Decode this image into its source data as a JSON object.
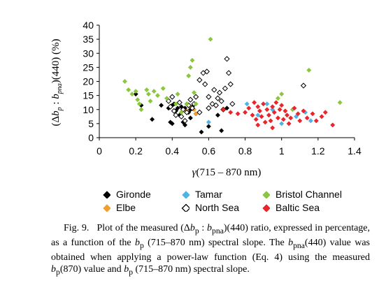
{
  "chart_data": {
    "type": "scatter",
    "xlabel": "γ(715 – 870 nm)",
    "ylabel": "(Δbp : bpna)(440) (%)",
    "xlim": [
      0,
      1.4
    ],
    "ylim": [
      0,
      40
    ],
    "xticks": [
      "0",
      "0.2",
      "0.4",
      "0.6",
      "0.8",
      "1",
      "1.2",
      "1.4"
    ],
    "yticks": [
      "0",
      "5",
      "10",
      "15",
      "20",
      "25",
      "30",
      "35",
      "40"
    ],
    "grid": false,
    "legend_placement": "bottom",
    "series": [
      {
        "name": "Gironde",
        "color": "#000000",
        "marker": "diamond-filled",
        "points": [
          [
            0.2,
            15.5
          ],
          [
            0.23,
            11.5
          ],
          [
            0.29,
            6.5
          ],
          [
            0.34,
            11.5
          ],
          [
            0.38,
            10.5
          ],
          [
            0.39,
            5.5
          ],
          [
            0.4,
            11.5
          ],
          [
            0.4,
            5
          ],
          [
            0.41,
            12
          ],
          [
            0.42,
            9.5
          ],
          [
            0.43,
            10.5
          ],
          [
            0.44,
            8
          ],
          [
            0.45,
            11
          ],
          [
            0.46,
            5.5
          ],
          [
            0.47,
            10.5
          ],
          [
            0.47,
            4.5
          ],
          [
            0.48,
            12
          ],
          [
            0.49,
            9
          ],
          [
            0.5,
            10
          ],
          [
            0.5,
            7
          ],
          [
            0.51,
            11
          ],
          [
            0.53,
            8.5
          ],
          [
            0.56,
            2
          ],
          [
            0.6,
            4
          ],
          [
            0.65,
            8
          ],
          [
            0.67,
            2.5
          ],
          [
            0.7,
            10.5
          ]
        ]
      },
      {
        "name": "Elbe",
        "color": "#f0a030",
        "marker": "diamond-filled",
        "points": [
          [
            0.45,
            9
          ],
          [
            0.48,
            9.5
          ],
          [
            0.5,
            11
          ],
          [
            0.52,
            10
          ],
          [
            0.53,
            8.5
          ],
          [
            0.55,
            9
          ]
        ]
      },
      {
        "name": "Tamar",
        "color": "#4fb3e6",
        "marker": "diamond-filled",
        "points": [
          [
            0.6,
            5.5
          ],
          [
            0.81,
            12
          ],
          [
            0.87,
            8
          ],
          [
            0.92,
            12
          ],
          [
            0.95,
            10
          ],
          [
            1.0,
            5
          ],
          [
            1.08,
            7.5
          ],
          [
            1.13,
            9
          ],
          [
            1.16,
            6
          ]
        ]
      },
      {
        "name": "North Sea",
        "color": "#000000",
        "marker": "diamond-open",
        "points": [
          [
            0.38,
            13
          ],
          [
            0.39,
            11
          ],
          [
            0.4,
            14.5
          ],
          [
            0.41,
            9.5
          ],
          [
            0.42,
            8
          ],
          [
            0.44,
            12.5
          ],
          [
            0.45,
            7.5
          ],
          [
            0.46,
            10
          ],
          [
            0.47,
            6
          ],
          [
            0.48,
            9
          ],
          [
            0.49,
            11.5
          ],
          [
            0.5,
            13.5
          ],
          [
            0.51,
            10.5
          ],
          [
            0.52,
            12
          ],
          [
            0.53,
            14.5
          ],
          [
            0.55,
            9
          ],
          [
            0.55,
            20.5
          ],
          [
            0.57,
            23
          ],
          [
            0.58,
            19
          ],
          [
            0.59,
            23.5
          ],
          [
            0.6,
            14.5
          ],
          [
            0.6,
            10.5
          ],
          [
            0.62,
            12
          ],
          [
            0.63,
            17
          ],
          [
            0.64,
            11.5
          ],
          [
            0.65,
            14
          ],
          [
            0.66,
            16
          ],
          [
            0.67,
            13
          ],
          [
            0.68,
            10
          ],
          [
            0.69,
            17.5
          ],
          [
            0.7,
            28
          ],
          [
            0.71,
            23
          ],
          [
            0.72,
            19
          ],
          [
            0.73,
            12
          ],
          [
            1.12,
            18.5
          ]
        ]
      },
      {
        "name": "Bristol Channel",
        "color": "#8cc63f",
        "marker": "diamond-filled",
        "points": [
          [
            0.14,
            20
          ],
          [
            0.16,
            17
          ],
          [
            0.18,
            15.5
          ],
          [
            0.2,
            16.5
          ],
          [
            0.21,
            13.5
          ],
          [
            0.22,
            12
          ],
          [
            0.23,
            10
          ],
          [
            0.26,
            17
          ],
          [
            0.27,
            15.5
          ],
          [
            0.28,
            13
          ],
          [
            0.3,
            16.5
          ],
          [
            0.32,
            15
          ],
          [
            0.35,
            17.5
          ],
          [
            0.37,
            14
          ],
          [
            0.42,
            12
          ],
          [
            0.43,
            15.5
          ],
          [
            0.45,
            9
          ],
          [
            0.48,
            12
          ],
          [
            0.49,
            22
          ],
          [
            0.5,
            25
          ],
          [
            0.51,
            27.5
          ],
          [
            0.52,
            16
          ],
          [
            0.53,
            12
          ],
          [
            0.61,
            35
          ],
          [
            0.98,
            14
          ],
          [
            1.0,
            15.5
          ],
          [
            1.06,
            10
          ],
          [
            1.15,
            24
          ],
          [
            1.32,
            12.5
          ]
        ]
      },
      {
        "name": "Baltic Sea",
        "color": "#e8262b",
        "marker": "diamond-filled",
        "points": [
          [
            0.68,
            10
          ],
          [
            0.72,
            9
          ],
          [
            0.76,
            8.5
          ],
          [
            0.8,
            9
          ],
          [
            0.82,
            10.5
          ],
          [
            0.84,
            8
          ],
          [
            0.85,
            12.5
          ],
          [
            0.86,
            6.5
          ],
          [
            0.87,
            11
          ],
          [
            0.87,
            4.5
          ],
          [
            0.88,
            9.5
          ],
          [
            0.89,
            7.5
          ],
          [
            0.9,
            12
          ],
          [
            0.91,
            5.5
          ],
          [
            0.92,
            10
          ],
          [
            0.93,
            8
          ],
          [
            0.94,
            6
          ],
          [
            0.95,
            11
          ],
          [
            0.95,
            3.5
          ],
          [
            0.96,
            9
          ],
          [
            0.97,
            12.5
          ],
          [
            0.98,
            7
          ],
          [
            0.99,
            10
          ],
          [
            1.0,
            11.5
          ],
          [
            1.01,
            6.5
          ],
          [
            1.02,
            9.5
          ],
          [
            1.03,
            8
          ],
          [
            1.04,
            5
          ],
          [
            1.05,
            7
          ],
          [
            1.07,
            10.5
          ],
          [
            1.09,
            8.5
          ],
          [
            1.1,
            6
          ],
          [
            1.12,
            9.5
          ],
          [
            1.14,
            7
          ],
          [
            1.17,
            8.5
          ],
          [
            1.19,
            6
          ],
          [
            1.22,
            7.5
          ],
          [
            1.24,
            9
          ],
          [
            1.28,
            4.5
          ]
        ]
      }
    ]
  },
  "axes": {
    "y_title_parts": [
      "(Δ",
      "b",
      "p",
      " : ",
      "b",
      "pna",
      ")(440) (%)"
    ],
    "x_title_parts": [
      "γ",
      "(715 – 870 nm)"
    ]
  },
  "legend": [
    {
      "label": "Gironde",
      "color": "#000000",
      "marker": "diamond-filled"
    },
    {
      "label": "Tamar",
      "color": "#4fb3e6",
      "marker": "diamond-filled"
    },
    {
      "label": "Bristol Channel",
      "color": "#8cc63f",
      "marker": "diamond-filled"
    },
    {
      "label": "Elbe",
      "color": "#f0a030",
      "marker": "diamond-filled"
    },
    {
      "label": "North Sea",
      "color": "#000000",
      "marker": "diamond-open"
    },
    {
      "label": "Baltic Sea",
      "color": "#e8262b",
      "marker": "diamond-filled"
    }
  ],
  "caption": {
    "label": "Fig. 9.",
    "text_1": "Plot of the measured (Δ",
    "bp": "b",
    "sub_p": "p",
    "colon": " : ",
    "bpna": "b",
    "sub_pna": "pna",
    "text_2": ")(440) ratio, expressed in percentage, as a function of the ",
    "bp2": "b",
    "sub_p2": "p",
    "text_3": " (715–870 nm) spectral slope. The ",
    "bpna2": "b",
    "sub_pna2": "pna",
    "text_4": "(440) value was obtained when applying a power-law function (Eq. 4) using the measured ",
    "bp3": "b",
    "sub_p3": "p",
    "text_5": "(870) value and ",
    "bp4": "b",
    "sub_p4": "p",
    "text_6": " (715–870 nm) spectral slope."
  }
}
